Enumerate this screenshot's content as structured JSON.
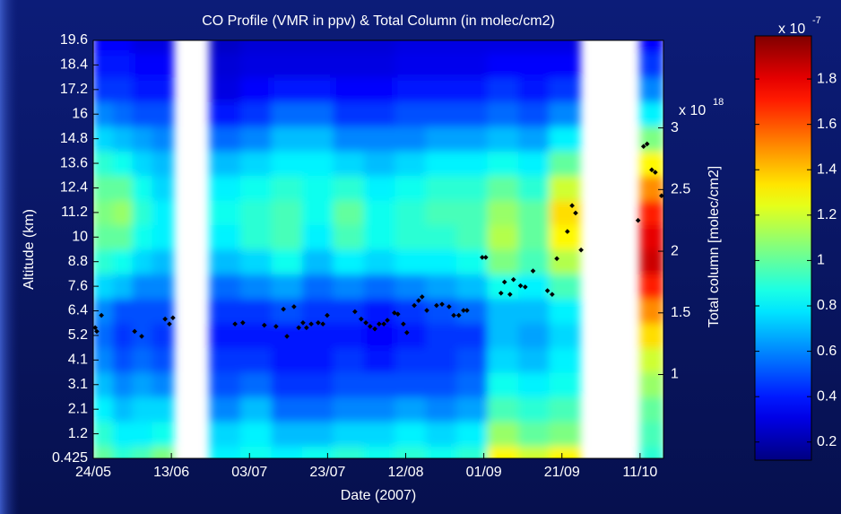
{
  "chart_data": {
    "type": "heatmap_scatter",
    "title": "CO Profile (VMR in ppv) & Total Column (in molec/cm2)",
    "xlabel": "Date (2007)",
    "ylabel": "Altitude (km)",
    "y2label": "Total column [molec/cm2]",
    "y2_multiplier": {
      "base": "x 10",
      "exponent": "18"
    },
    "xlim": [
      0,
      146
    ],
    "xticks": [
      {
        "value": 0,
        "label": "24/05"
      },
      {
        "value": 20,
        "label": "13/06"
      },
      {
        "value": 40,
        "label": "03/07"
      },
      {
        "value": 60,
        "label": "23/07"
      },
      {
        "value": 80,
        "label": "12/08"
      },
      {
        "value": 100,
        "label": "01/09"
      },
      {
        "value": 120,
        "label": "21/09"
      },
      {
        "value": 140,
        "label": "11/10"
      }
    ],
    "altitude_levels": [
      0.425,
      1.2,
      2.1,
      3.1,
      4.1,
      5.2,
      6.4,
      7.6,
      8.8,
      10,
      11.2,
      12.4,
      13.6,
      14.8,
      16,
      17.2,
      18.4,
      19.6
    ],
    "y2lim": [
      0.32,
      3.71
    ],
    "y2ticks": [
      1,
      1.5,
      2,
      2.5,
      3
    ],
    "heatmap": {
      "colormap": "jet",
      "x_edges": [
        0,
        5,
        10,
        15,
        20.5,
        29.8,
        37.7,
        45.6,
        53.5,
        61.4,
        69.3,
        77.2,
        85.1,
        93,
        100.9,
        108.8,
        116.7,
        124.6,
        140,
        146
      ],
      "values": [
        [
          1.0,
          0.9,
          0.8,
          0.7,
          0.6,
          0.55,
          0.6,
          0.75,
          0.9,
          1.0,
          1.05,
          1.0,
          0.9,
          0.75,
          0.6,
          0.45,
          0.4,
          0.35
        ],
        [
          0.9,
          0.8,
          0.7,
          0.6,
          0.5,
          0.45,
          0.5,
          0.7,
          0.85,
          1.0,
          1.1,
          1.0,
          0.85,
          0.7,
          0.55,
          0.45,
          0.4,
          0.35
        ],
        [
          0.95,
          0.8,
          0.75,
          0.65,
          0.55,
          0.5,
          0.5,
          0.6,
          0.75,
          0.85,
          0.9,
          0.85,
          0.75,
          0.65,
          0.5,
          0.4,
          0.35,
          0.3
        ],
        [
          1.05,
          0.85,
          0.75,
          0.6,
          0.5,
          0.45,
          0.5,
          0.6,
          0.7,
          0.8,
          0.8,
          0.75,
          0.7,
          0.6,
          0.5,
          0.4,
          0.35,
          0.3
        ],
        null,
        [
          0.8,
          0.75,
          0.6,
          0.5,
          0.45,
          0.4,
          0.45,
          0.55,
          0.7,
          0.8,
          0.85,
          0.8,
          0.7,
          0.55,
          0.4,
          0.3,
          0.28,
          0.25
        ],
        [
          0.85,
          0.8,
          0.7,
          0.55,
          0.45,
          0.4,
          0.45,
          0.6,
          0.75,
          0.9,
          0.9,
          0.85,
          0.75,
          0.6,
          0.45,
          0.35,
          0.3,
          0.28
        ],
        [
          0.8,
          0.7,
          0.55,
          0.45,
          0.4,
          0.4,
          0.5,
          0.65,
          0.85,
          0.95,
          0.95,
          0.9,
          0.8,
          0.7,
          0.55,
          0.4,
          0.3,
          0.28
        ],
        [
          0.85,
          0.7,
          0.55,
          0.45,
          0.4,
          0.4,
          0.45,
          0.55,
          0.7,
          0.8,
          0.85,
          0.85,
          0.8,
          0.7,
          0.55,
          0.4,
          0.3,
          0.28
        ],
        [
          0.9,
          0.75,
          0.6,
          0.5,
          0.45,
          0.4,
          0.45,
          0.6,
          0.8,
          0.95,
          1.0,
          0.9,
          0.75,
          0.6,
          0.45,
          0.35,
          0.3,
          0.28
        ],
        [
          0.85,
          0.75,
          0.6,
          0.5,
          0.4,
          0.35,
          0.4,
          0.55,
          0.75,
          0.85,
          0.85,
          0.8,
          0.7,
          0.6,
          0.45,
          0.35,
          0.3,
          0.28
        ],
        [
          0.9,
          0.8,
          0.65,
          0.5,
          0.45,
          0.4,
          0.45,
          0.6,
          0.8,
          0.9,
          0.9,
          0.85,
          0.75,
          0.6,
          0.5,
          0.4,
          0.32,
          0.3
        ],
        [
          0.85,
          0.75,
          0.6,
          0.5,
          0.45,
          0.45,
          0.5,
          0.65,
          0.8,
          0.9,
          0.95,
          0.9,
          0.8,
          0.65,
          0.5,
          0.4,
          0.32,
          0.3
        ],
        [
          0.9,
          0.8,
          0.65,
          0.55,
          0.5,
          0.45,
          0.55,
          0.7,
          0.85,
          0.95,
          0.95,
          0.9,
          0.8,
          0.65,
          0.5,
          0.4,
          0.32,
          0.3
        ],
        [
          1.3,
          1.1,
          0.95,
          0.85,
          0.75,
          0.7,
          0.7,
          0.85,
          1.05,
          1.15,
          1.1,
          1.0,
          0.85,
          0.7,
          0.55,
          0.45,
          0.35,
          0.3
        ],
        [
          1.2,
          1.0,
          0.9,
          0.8,
          0.7,
          0.65,
          0.7,
          0.8,
          0.95,
          1.0,
          1.0,
          0.9,
          0.8,
          0.65,
          0.5,
          0.4,
          0.35,
          0.3
        ],
        [
          1.3,
          1.05,
          0.95,
          0.85,
          0.8,
          0.75,
          0.8,
          0.95,
          1.15,
          1.3,
          1.35,
          1.2,
          1.0,
          0.8,
          0.6,
          0.45,
          0.35,
          0.3
        ],
        null,
        [
          0.9,
          0.95,
          1.0,
          1.1,
          1.2,
          1.35,
          1.5,
          1.7,
          1.85,
          1.8,
          1.7,
          1.5,
          1.3,
          1.05,
          0.8,
          0.6,
          0.45,
          0.35
        ]
      ]
    },
    "colorbar": {
      "clim": [
        0.12,
        1.99
      ],
      "ticks": [
        0.2,
        0.4,
        0.6,
        0.8,
        1,
        1.2,
        1.4,
        1.6,
        1.8
      ],
      "multiplier": {
        "base": "x 10",
        "exponent": "-7"
      }
    },
    "scatter": {
      "color": "#000000",
      "axis": "y2",
      "x": [
        0.5,
        0.9,
        2.1,
        10.6,
        12.4,
        18.4,
        19.5,
        20.4,
        36.3,
        38.3,
        43.8,
        46.8,
        48.7,
        49.6,
        51.4,
        52.6,
        53.7,
        54.6,
        55.8,
        57.6,
        58.8,
        59.9,
        67,
        68.6,
        69.8,
        70.9,
        72.1,
        73.2,
        74.4,
        75.3,
        77.1,
        78,
        79.4,
        80.3,
        82.2,
        83.3,
        84.2,
        85.4,
        87.9,
        89.3,
        91.1,
        92.3,
        93.6,
        94.8,
        95.7,
        99.6,
        100.5,
        104.4,
        105.3,
        106.7,
        107.6,
        109.4,
        110.6,
        112.6,
        116.3,
        117.5,
        118.7,
        121.4,
        122.6,
        123.5,
        124.9,
        139.5,
        140.9,
        141.8,
        143,
        143.9,
        145.5
      ],
      "values": [
        1.38,
        1.35,
        1.48,
        1.35,
        1.31,
        1.45,
        1.41,
        1.46,
        1.41,
        1.42,
        1.4,
        1.39,
        1.53,
        1.31,
        1.55,
        1.38,
        1.42,
        1.38,
        1.41,
        1.42,
        1.41,
        1.48,
        1.51,
        1.45,
        1.42,
        1.39,
        1.37,
        1.41,
        1.41,
        1.44,
        1.5,
        1.49,
        1.41,
        1.34,
        1.56,
        1.6,
        1.63,
        1.52,
        1.56,
        1.57,
        1.55,
        1.48,
        1.48,
        1.52,
        1.52,
        1.95,
        1.95,
        1.66,
        1.75,
        1.65,
        1.77,
        1.72,
        1.71,
        1.84,
        1.68,
        1.65,
        1.94,
        2.16,
        2.37,
        2.31,
        2.01,
        2.25,
        2.85,
        2.87,
        2.66,
        2.64,
        2.45
      ]
    }
  }
}
